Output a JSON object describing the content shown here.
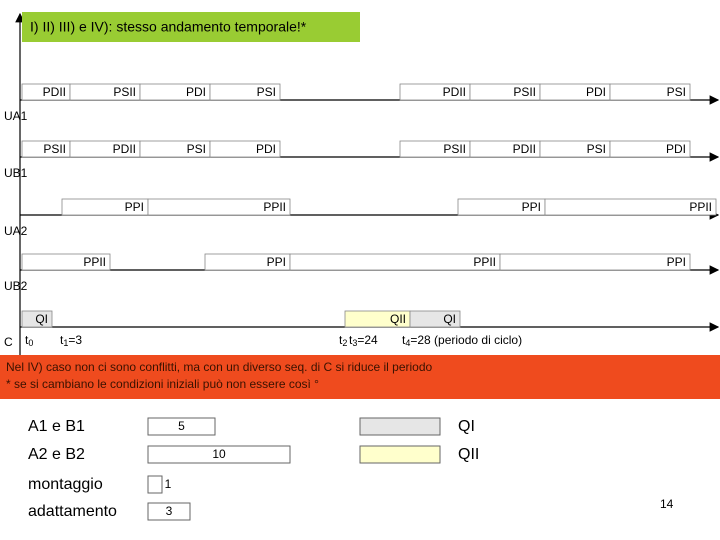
{
  "title": "I) II) III) e IV): stesso andamento temporale!*",
  "rows": [
    {
      "label": "UA1",
      "bars": [
        "PDII",
        "PSII",
        "PDI",
        "PSI",
        "PDII",
        "PSII",
        "PDI",
        "PSI"
      ]
    },
    {
      "label": "UB1",
      "bars": [
        "PSII",
        "PDII",
        "PSI",
        "PDI",
        "PSII",
        "PDII",
        "PSI",
        "PDI"
      ]
    },
    {
      "label": "UA2",
      "bars": [
        "PPI",
        "PPII",
        "PPI",
        "PPII"
      ]
    },
    {
      "label": "UB2",
      "bars": [
        "PPII",
        "PPI",
        "PPII",
        "PPI"
      ]
    },
    {
      "label": "C",
      "bars": [
        "QI",
        "QII",
        "QI"
      ]
    }
  ],
  "times": [
    {
      "t": "t",
      "sub": "0",
      "rest": ""
    },
    {
      "t": "t",
      "sub": "1",
      "rest": "=3"
    },
    {
      "t": "t",
      "sub": "2",
      "rest": ""
    },
    {
      "t": "t",
      "sub": "3",
      "rest": "=24"
    },
    {
      "t": "t",
      "sub": "4",
      "rest": "=28 (periodo di ciclo)"
    }
  ],
  "note": [
    "Nel IV) caso non ci sono conflitti, ma con un diverso seq. di C si riduce il periodo",
    "* se si cambiano le condizioni iniziali può non essere così     °"
  ],
  "durations": [
    {
      "label": "A1 e B1",
      "value": "5"
    },
    {
      "label": "A2 e B2",
      "value": "10"
    },
    {
      "label": "montaggio",
      "value": "1"
    },
    {
      "label": "adattamento",
      "value": "3"
    }
  ],
  "legend": [
    "QI",
    "QII"
  ],
  "page_number": "14"
}
